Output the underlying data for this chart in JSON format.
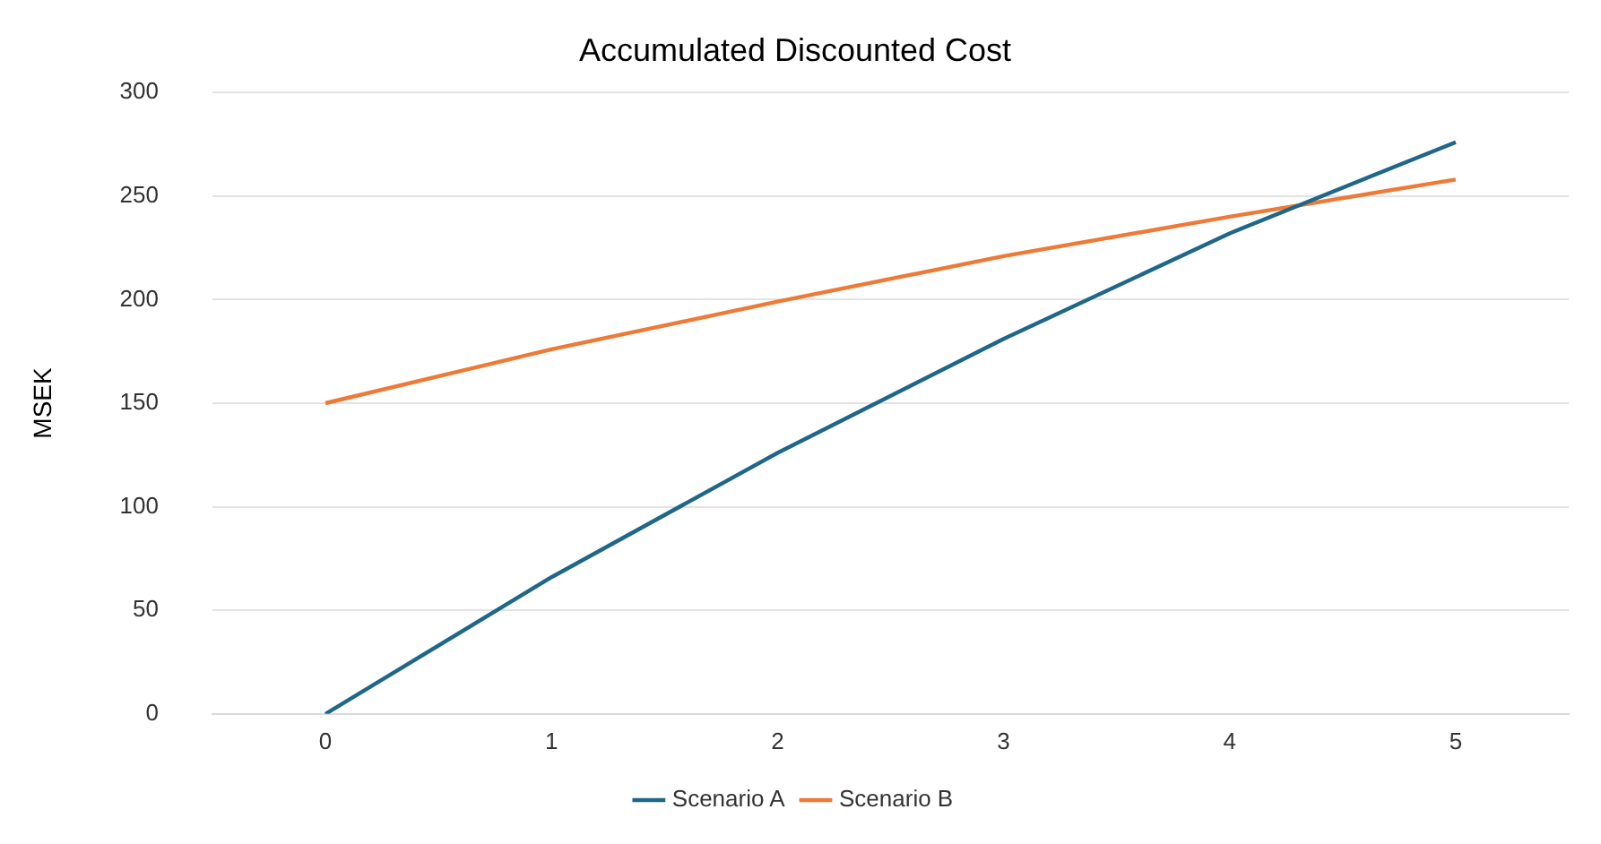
{
  "chart_data": {
    "type": "line",
    "title": "Accumulated Discounted Cost",
    "ylabel": "MSEK",
    "categories": [
      "0",
      "1",
      "2",
      "3",
      "4",
      "5"
    ],
    "series": [
      {
        "name": "Scenario A",
        "color": "#1f6788",
        "values": [
          0,
          66,
          126,
          181,
          232,
          276
        ]
      },
      {
        "name": "Scenario B",
        "color": "#ee7a37",
        "values": [
          150,
          176,
          199,
          221,
          240,
          258
        ]
      }
    ],
    "ylim": [
      0,
      300
    ],
    "yticks": [
      0,
      50,
      100,
      150,
      200,
      250,
      300
    ],
    "grid": "y",
    "legend": "bottom",
    "marker": "none",
    "line_style": "solid"
  }
}
